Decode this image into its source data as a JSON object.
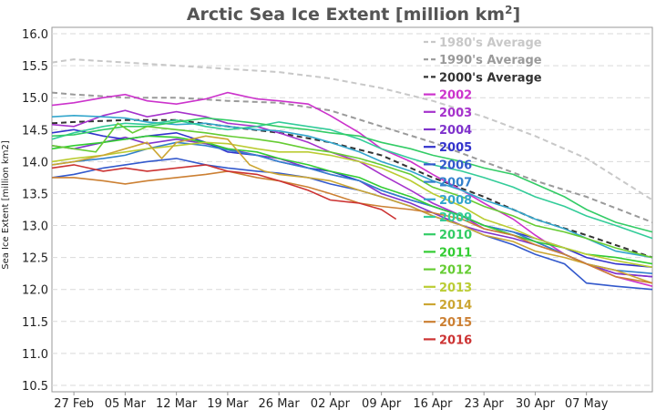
{
  "chart_data": {
    "type": "line",
    "title": "Arctic Sea Ice Extent [million km",
    "title_sup": "2",
    "title_end": "]",
    "ylabel": "Sea Ice Extent [million km2]",
    "xlabel": "",
    "ylim": [
      10.4,
      16.1
    ],
    "y_ticks": [
      10.5,
      11.0,
      11.5,
      12.0,
      12.5,
      13.0,
      13.5,
      14.0,
      14.5,
      15.0,
      15.5,
      16.0
    ],
    "y_tick_labels": [
      "10.5",
      "11.0",
      "11.5",
      "12.0",
      "12.5",
      "13.0",
      "13.5",
      "14.0",
      "14.5",
      "15.0",
      "15.5",
      "16.0"
    ],
    "xlim": [
      -3,
      79
    ],
    "x_ticks": [
      0,
      7,
      14,
      21,
      28,
      35,
      42,
      49,
      56,
      63,
      70
    ],
    "x_tick_labels": [
      "27 Feb",
      "05 Mar",
      "12 Mar",
      "19 Mar",
      "26 Mar",
      "02 Apr",
      "09 Apr",
      "16 Apr",
      "23 Apr",
      "30 Apr",
      "07 May"
    ],
    "grid": "horizontal dashed",
    "legend_position": "top-right",
    "series": [
      {
        "name": "1980's Average",
        "color": "#c8c8c8",
        "dash": true,
        "x": [
          -3,
          0,
          7,
          14,
          21,
          28,
          35,
          42,
          49,
          56,
          63,
          70,
          79
        ],
        "values": [
          15.55,
          15.6,
          15.55,
          15.5,
          15.45,
          15.4,
          15.3,
          15.15,
          14.95,
          14.7,
          14.4,
          14.05,
          13.4
        ]
      },
      {
        "name": "1990's Average",
        "color": "#9a9a9a",
        "dash": true,
        "x": [
          -3,
          0,
          7,
          14,
          21,
          28,
          35,
          42,
          49,
          56,
          63,
          70,
          79
        ],
        "values": [
          15.08,
          15.05,
          15.0,
          15.0,
          14.95,
          14.92,
          14.8,
          14.55,
          14.3,
          14.0,
          13.7,
          13.45,
          13.05
        ]
      },
      {
        "name": "2000's Average",
        "color": "#333333",
        "dash": true,
        "x": [
          -3,
          0,
          7,
          14,
          21,
          28,
          35,
          42,
          49,
          56,
          63,
          70,
          79
        ],
        "values": [
          14.6,
          14.62,
          14.65,
          14.65,
          14.55,
          14.45,
          14.3,
          14.1,
          13.75,
          13.45,
          13.1,
          12.85,
          12.5
        ]
      },
      {
        "name": "2002",
        "color": "#cc33cc",
        "x": [
          -3,
          0,
          4,
          7,
          10,
          14,
          18,
          21,
          25,
          28,
          32,
          35,
          39,
          42,
          46,
          49,
          53,
          56,
          60,
          63,
          67,
          70,
          74,
          79
        ],
        "values": [
          14.88,
          14.92,
          15.0,
          15.05,
          14.95,
          14.9,
          14.98,
          15.08,
          14.98,
          14.95,
          14.9,
          14.72,
          14.45,
          14.2,
          14.0,
          13.8,
          13.55,
          13.35,
          13.1,
          12.85,
          12.55,
          12.4,
          12.2,
          12.05
        ]
      },
      {
        "name": "2003",
        "color": "#a633cc",
        "x": [
          -3,
          0,
          4,
          7,
          10,
          14,
          18,
          21,
          25,
          28,
          32,
          35,
          39,
          42,
          46,
          49,
          53,
          56,
          60,
          63,
          67,
          70,
          74,
          79
        ],
        "values": [
          14.58,
          14.55,
          14.72,
          14.8,
          14.7,
          14.78,
          14.7,
          14.6,
          14.55,
          14.45,
          14.3,
          14.15,
          14.0,
          13.8,
          13.55,
          13.35,
          13.15,
          12.95,
          12.85,
          12.75,
          12.55,
          12.4,
          12.25,
          12.2
        ]
      },
      {
        "name": "2004",
        "color": "#7f33cc",
        "x": [
          -3,
          0,
          4,
          7,
          10,
          14,
          18,
          21,
          25,
          28,
          32,
          35,
          39,
          42,
          46,
          49,
          53,
          56,
          60,
          63,
          67,
          70,
          74,
          79
        ],
        "values": [
          14.25,
          14.2,
          14.3,
          14.38,
          14.28,
          14.35,
          14.28,
          14.2,
          14.1,
          14.05,
          13.9,
          13.8,
          13.7,
          13.5,
          13.35,
          13.2,
          13.0,
          12.9,
          12.8,
          12.7,
          12.55,
          12.4,
          12.25,
          12.2
        ]
      },
      {
        "name": "2005",
        "color": "#3333cc",
        "x": [
          -3,
          0,
          4,
          7,
          10,
          14,
          18,
          21,
          25,
          28,
          32,
          35,
          39,
          42,
          46,
          49,
          53,
          56,
          60,
          63,
          67,
          70,
          74,
          79
        ],
        "values": [
          14.45,
          14.5,
          14.4,
          14.35,
          14.4,
          14.45,
          14.3,
          14.15,
          14.1,
          14.0,
          13.9,
          13.85,
          13.7,
          13.55,
          13.4,
          13.3,
          13.15,
          13.0,
          12.9,
          12.8,
          12.65,
          12.5,
          12.4,
          12.35
        ]
      },
      {
        "name": "2006",
        "color": "#3359cc",
        "x": [
          -3,
          0,
          4,
          7,
          10,
          14,
          18,
          21,
          25,
          28,
          32,
          35,
          39,
          42,
          46,
          49,
          53,
          56,
          60,
          63,
          67,
          70,
          74,
          79
        ],
        "values": [
          13.75,
          13.8,
          13.9,
          13.95,
          14.0,
          14.05,
          13.95,
          13.9,
          13.85,
          13.82,
          13.75,
          13.65,
          13.55,
          13.45,
          13.3,
          13.15,
          13.0,
          12.85,
          12.7,
          12.55,
          12.4,
          12.1,
          12.05,
          12.0
        ]
      },
      {
        "name": "2007",
        "color": "#3380cc",
        "x": [
          -3,
          0,
          4,
          7,
          10,
          14,
          18,
          21,
          25,
          28,
          32,
          35,
          39,
          42,
          46,
          49,
          53,
          56,
          60,
          63,
          67,
          70,
          74,
          79
        ],
        "values": [
          13.95,
          14.0,
          14.05,
          14.1,
          14.2,
          14.3,
          14.25,
          14.18,
          14.1,
          14.0,
          13.9,
          13.8,
          13.7,
          13.55,
          13.4,
          13.3,
          13.15,
          13.0,
          12.9,
          12.75,
          12.55,
          12.4,
          12.3,
          12.25
        ]
      },
      {
        "name": "2008",
        "color": "#33a6cc",
        "x": [
          -3,
          0,
          4,
          7,
          10,
          14,
          18,
          21,
          25,
          28,
          32,
          35,
          39,
          42,
          46,
          49,
          53,
          56,
          60,
          63,
          67,
          70,
          74,
          79
        ],
        "values": [
          14.7,
          14.72,
          14.7,
          14.68,
          14.62,
          14.58,
          14.6,
          14.55,
          14.5,
          14.48,
          14.4,
          14.3,
          14.15,
          14.0,
          13.85,
          13.7,
          13.55,
          13.4,
          13.25,
          13.1,
          12.95,
          12.8,
          12.6,
          12.5
        ]
      },
      {
        "name": "2009",
        "color": "#33cc99",
        "x": [
          -3,
          0,
          4,
          7,
          10,
          14,
          18,
          21,
          25,
          28,
          32,
          35,
          39,
          42,
          46,
          49,
          53,
          56,
          60,
          63,
          67,
          70,
          74,
          79
        ],
        "values": [
          14.35,
          14.45,
          14.55,
          14.6,
          14.58,
          14.65,
          14.55,
          14.5,
          14.55,
          14.62,
          14.55,
          14.5,
          14.35,
          14.2,
          14.05,
          13.95,
          13.85,
          13.75,
          13.6,
          13.45,
          13.3,
          13.15,
          13.0,
          12.8
        ]
      },
      {
        "name": "2010",
        "color": "#33cc66",
        "x": [
          -3,
          0,
          4,
          7,
          10,
          14,
          18,
          21,
          25,
          28,
          32,
          35,
          39,
          42,
          46,
          49,
          53,
          56,
          60,
          63,
          67,
          70,
          74,
          79
        ],
        "values": [
          14.4,
          14.42,
          14.5,
          14.55,
          14.55,
          14.62,
          14.68,
          14.65,
          14.6,
          14.55,
          14.5,
          14.45,
          14.4,
          14.3,
          14.2,
          14.1,
          14.0,
          13.9,
          13.8,
          13.65,
          13.45,
          13.25,
          13.05,
          12.9
        ]
      },
      {
        "name": "2011",
        "color": "#33cc33",
        "x": [
          -3,
          0,
          4,
          7,
          10,
          14,
          18,
          21,
          25,
          28,
          32,
          35,
          39,
          42,
          46,
          49,
          53,
          56,
          60,
          63,
          67,
          70,
          74,
          79
        ],
        "values": [
          14.2,
          14.25,
          14.3,
          14.35,
          14.4,
          14.38,
          14.3,
          14.2,
          14.15,
          14.05,
          13.95,
          13.85,
          13.75,
          13.6,
          13.45,
          13.3,
          13.15,
          13.0,
          12.85,
          12.75,
          12.65,
          12.55,
          12.5,
          12.4
        ]
      },
      {
        "name": "2012",
        "color": "#66cc33",
        "x": [
          -3,
          0,
          3,
          4,
          6,
          8,
          10,
          14,
          18,
          21,
          25,
          28,
          32,
          35,
          39,
          42,
          46,
          49,
          53,
          56,
          60,
          63,
          67,
          70,
          74,
          79
        ],
        "values": [
          14.25,
          14.2,
          14.15,
          14.3,
          14.6,
          14.45,
          14.55,
          14.5,
          14.45,
          14.4,
          14.35,
          14.3,
          14.2,
          14.15,
          14.05,
          13.95,
          13.8,
          13.6,
          13.45,
          13.3,
          13.15,
          13.0,
          12.9,
          12.8,
          12.65,
          12.5
        ]
      },
      {
        "name": "2013",
        "color": "#bbcc33",
        "x": [
          -3,
          0,
          4,
          7,
          10,
          14,
          18,
          21,
          25,
          28,
          32,
          35,
          39,
          42,
          46,
          49,
          53,
          56,
          60,
          63,
          67,
          70,
          74,
          79
        ],
        "values": [
          14.0,
          14.05,
          14.1,
          14.15,
          14.2,
          14.25,
          14.3,
          14.28,
          14.2,
          14.15,
          14.15,
          14.1,
          14.0,
          13.9,
          13.7,
          13.5,
          13.3,
          13.1,
          12.95,
          12.8,
          12.65,
          12.55,
          12.45,
          12.35
        ]
      },
      {
        "name": "2014",
        "color": "#cca633",
        "x": [
          -3,
          0,
          4,
          7,
          10,
          12,
          14,
          18,
          21,
          24,
          26,
          28,
          32,
          35,
          39,
          42,
          46,
          49,
          53,
          56,
          60,
          63,
          67,
          70,
          74,
          79
        ],
        "values": [
          13.95,
          14.0,
          14.1,
          14.2,
          14.3,
          14.05,
          14.3,
          14.4,
          14.35,
          13.95,
          13.85,
          13.8,
          13.75,
          13.7,
          13.55,
          13.45,
          13.3,
          13.15,
          13.0,
          12.85,
          12.75,
          12.6,
          12.5,
          12.4,
          12.3,
          12.1
        ]
      },
      {
        "name": "2015",
        "color": "#cc8033",
        "x": [
          -3,
          0,
          4,
          7,
          10,
          14,
          18,
          21,
          25,
          28,
          32,
          35,
          39,
          42,
          46,
          49,
          53,
          56,
          60,
          63,
          67,
          70,
          74,
          79
        ],
        "values": [
          13.75,
          13.75,
          13.7,
          13.65,
          13.7,
          13.75,
          13.8,
          13.85,
          13.75,
          13.7,
          13.6,
          13.5,
          13.35,
          13.3,
          13.25,
          13.2,
          13.1,
          12.95,
          12.85,
          12.7,
          12.55,
          12.4,
          12.2,
          12.1
        ]
      },
      {
        "name": "2016",
        "color": "#cc3333",
        "x": [
          -3,
          0,
          4,
          7,
          10,
          14,
          18,
          21,
          25,
          28,
          32,
          35,
          39,
          42,
          44
        ],
        "values": [
          13.9,
          13.95,
          13.85,
          13.9,
          13.85,
          13.9,
          13.95,
          13.85,
          13.8,
          13.7,
          13.55,
          13.4,
          13.35,
          13.25,
          13.1
        ]
      }
    ]
  }
}
